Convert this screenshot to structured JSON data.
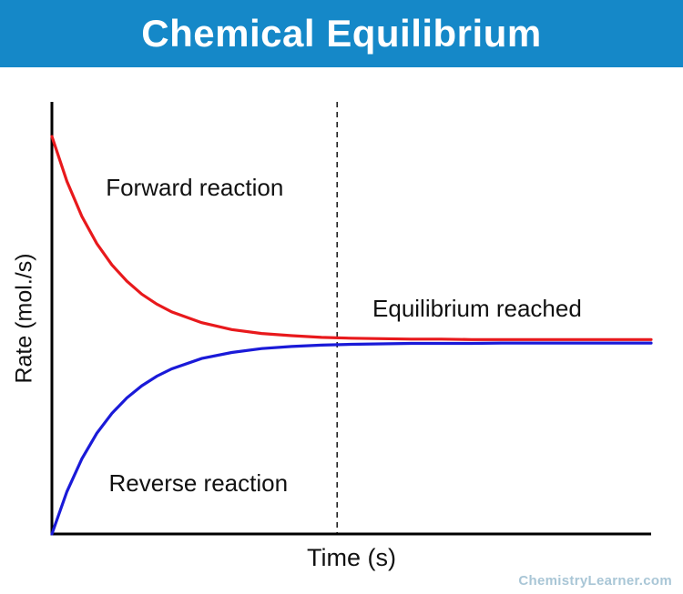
{
  "header": {
    "title": "Chemical Equilibrium",
    "background": "#1588c8",
    "text_color": "#ffffff"
  },
  "watermark": "ChemistryLearner.com",
  "chart_data": {
    "type": "line",
    "title": "Chemical Equilibrium",
    "xlabel": "Time (s)",
    "ylabel": "Rate (mol./s)",
    "x_range": [
      0,
      10
    ],
    "y_range": [
      0,
      10
    ],
    "grid": false,
    "axis_ticks": "none",
    "axis_color": "#000000",
    "equilibrium": {
      "time": 4.76,
      "line_style": "dashed",
      "line_color": "#222222"
    },
    "series": [
      {
        "name": "Forward reaction",
        "color": "#e8191c",
        "x": [
          0,
          0.25,
          0.5,
          0.75,
          1,
          1.25,
          1.5,
          1.75,
          2,
          2.5,
          3,
          3.5,
          4,
          4.5,
          5,
          5.5,
          6,
          6.5,
          7,
          7.5,
          8,
          8.5,
          9,
          9.5,
          10
        ],
        "y": [
          9.2,
          8.16,
          7.35,
          6.72,
          6.23,
          5.85,
          5.55,
          5.32,
          5.14,
          4.89,
          4.73,
          4.64,
          4.59,
          4.55,
          4.53,
          4.52,
          4.51,
          4.51,
          4.5,
          4.5,
          4.5,
          4.5,
          4.5,
          4.5,
          4.5
        ]
      },
      {
        "name": "Reverse reaction",
        "color": "#1a1ad8",
        "x": [
          0,
          0.25,
          0.5,
          0.75,
          1,
          1.25,
          1.5,
          1.75,
          2,
          2.5,
          3,
          3.5,
          4,
          4.5,
          5,
          5.5,
          6,
          6.5,
          7,
          7.5,
          8,
          8.5,
          9,
          9.5,
          10
        ],
        "y": [
          0,
          0.98,
          1.74,
          2.33,
          2.79,
          3.15,
          3.43,
          3.65,
          3.82,
          4.06,
          4.2,
          4.29,
          4.34,
          4.37,
          4.39,
          4.4,
          4.41,
          4.41,
          4.41,
          4.42,
          4.42,
          4.42,
          4.42,
          4.42,
          4.42
        ]
      }
    ],
    "annotations": [
      {
        "text": "Forward reaction",
        "x": 0.9,
        "y": 8.3
      },
      {
        "text": "Reverse reaction",
        "x": 0.95,
        "y": 1.45
      },
      {
        "text": "Equilibrium reached",
        "x": 5.35,
        "y": 5.5
      }
    ]
  }
}
